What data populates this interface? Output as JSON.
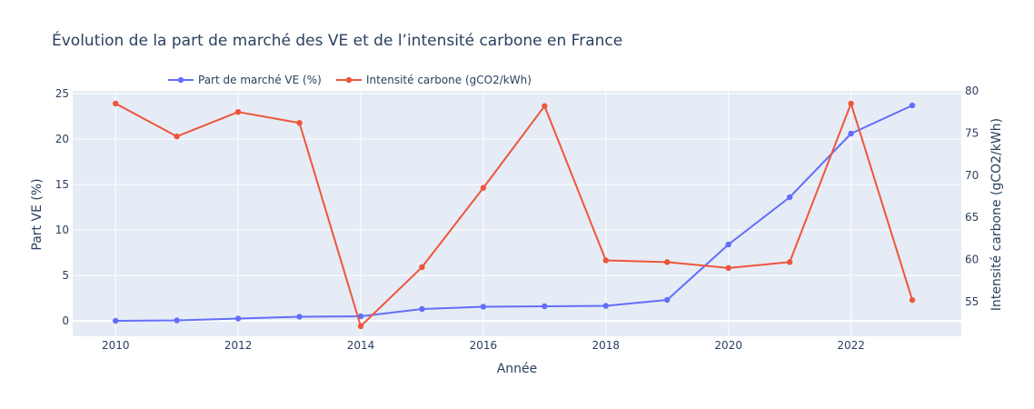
{
  "chart_data": {
    "type": "line",
    "title": "Évolution de la part de marché des VE et de l’intensité carbone en France",
    "xlabel": "Année",
    "ylabel": "Part VE (%)",
    "y2label": "Intensité carbone (gCO2/kWh)",
    "x": [
      2010,
      2011,
      2012,
      2013,
      2014,
      2015,
      2016,
      2017,
      2018,
      2019,
      2020,
      2021,
      2022,
      2023
    ],
    "xlim": [
      2009.3,
      2023.8
    ],
    "ylim": [
      -1.7,
      25.3
    ],
    "y2lim": [
      50.9,
      80.0
    ],
    "xticks": [
      2010,
      2012,
      2014,
      2016,
      2018,
      2020,
      2022
    ],
    "yticks": [
      0,
      5,
      10,
      15,
      20,
      25
    ],
    "y2ticks": [
      55,
      60,
      65,
      70,
      75,
      80
    ],
    "grid": true,
    "legend_position": "top",
    "series": [
      {
        "name": "Part de marché VE (%)",
        "axis": "y",
        "color": "#636efa",
        "values": [
          0.0,
          0.05,
          0.25,
          0.45,
          0.5,
          1.3,
          1.55,
          1.6,
          1.65,
          2.3,
          8.4,
          13.6,
          20.6,
          23.7
        ]
      },
      {
        "name": "Intensité carbone (gCO2/kWh)",
        "axis": "y2",
        "color": "#ef553b",
        "values": [
          78.5,
          74.6,
          77.5,
          76.2,
          52.1,
          59.1,
          68.5,
          78.2,
          59.9,
          59.7,
          59.0,
          59.7,
          78.5,
          55.2
        ]
      }
    ]
  },
  "colors": {
    "plot_background": "#e5ecf6",
    "grid": "#ffffff",
    "text": "#2a3f5f"
  }
}
